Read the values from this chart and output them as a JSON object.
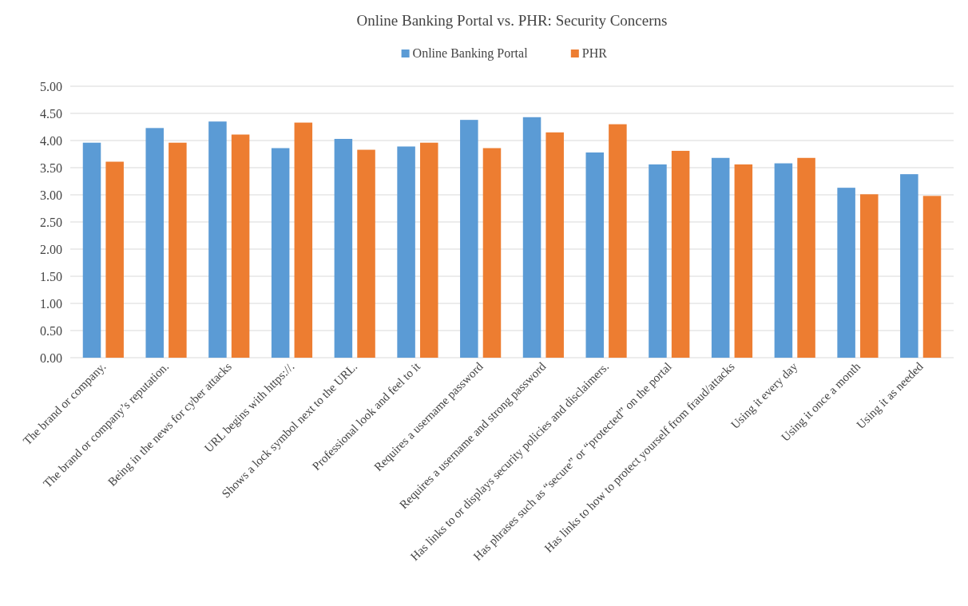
{
  "chart_data": {
    "type": "bar",
    "title": "Online Banking Portal vs. PHR: Security Concerns",
    "categories": [
      "The brand or company.",
      "The brand or company’s reputation.",
      "Being in the news for cyber attacks",
      "URL begins with https://.",
      "Shows a lock symbol next to the URL.",
      "Professional look and feel to it",
      "Requires a username password",
      "Requires a username and strong password",
      "Has links to or displays security policies and disclaimers.",
      "Has phrases such as “secure” or “protected” on the portal",
      "Has links to how to protect yourself from fraud/attacks",
      "Using it every day",
      "Using it once a month",
      "Using it as needed"
    ],
    "series": [
      {
        "name": "Online Banking Portal",
        "color": "#5b9bd5",
        "values": [
          3.96,
          4.23,
          4.35,
          3.86,
          4.03,
          3.89,
          4.38,
          4.43,
          3.78,
          3.56,
          3.68,
          3.58,
          3.13,
          3.38
        ]
      },
      {
        "name": "PHR",
        "color": "#ed7d31",
        "values": [
          3.61,
          3.96,
          4.11,
          4.33,
          3.83,
          3.96,
          3.86,
          4.15,
          4.3,
          3.81,
          3.56,
          3.68,
          3.01,
          2.98
        ]
      }
    ],
    "ylim": [
      0,
      5
    ],
    "yticks": [
      {
        "value": 0,
        "label": "0.00"
      },
      {
        "value": 0.5,
        "label": "0.50"
      },
      {
        "value": 1,
        "label": "1.00"
      },
      {
        "value": 1.5,
        "label": "1.50"
      },
      {
        "value": 2,
        "label": "2.00"
      },
      {
        "value": 2.5,
        "label": "2.50"
      },
      {
        "value": 3,
        "label": "3.00"
      },
      {
        "value": 3.5,
        "label": "3.50"
      },
      {
        "value": 4,
        "label": "4.00"
      },
      {
        "value": 4.5,
        "label": "4.50"
      },
      {
        "value": 5,
        "label": "5.00"
      }
    ],
    "grid": "y",
    "legend": "top"
  }
}
